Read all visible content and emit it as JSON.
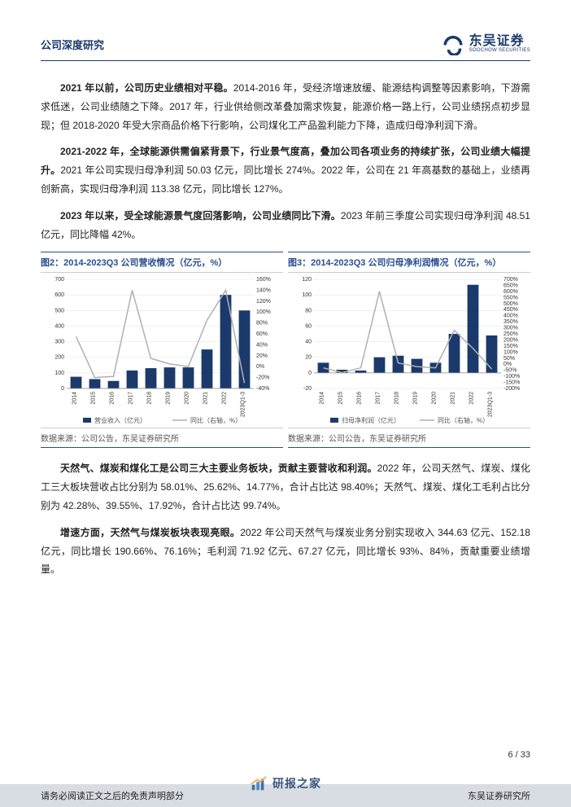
{
  "header": {
    "title": "公司深度研究",
    "logo_cn": "东吴证券",
    "logo_en": "SOOCHOW SECURITIES"
  },
  "paragraphs": {
    "p1a": "2021 年以前，公司历史业绩相对平稳。",
    "p1b": "2014-2016 年，受经济增速放缓、能源结构调整等因素影响，下游需求低迷，公司业绩随之下降。2017 年，行业供给侧改革叠加需求恢复，能源价格一路上行，公司业绩拐点初步显现；但 2018-2020 年受大宗商品价格下行影响，公司煤化工产品盈利能力下降，造成归母净利润下滑。",
    "p2a": "2021-2022 年，全球能源供需偏紧背景下，行业景气度高，叠加公司各项业务的持续扩张，公司业绩大幅提升。",
    "p2b": "2021 年公司实现归母净利润 50.03 亿元，同比增长 274%。2022 年，公司在 21 年高基数的基础上，业绩再创新高，实现归母净利润 113.38 亿元，同比增长 127%。",
    "p3a": "2023 年以来，受全球能源景气度回落影响，公司业绩同比下滑。",
    "p3b": "2023 年前三季度公司实现归母净利润 48.51 亿元，同比降幅 42%。",
    "p4a": "天然气、煤炭和煤化工是公司三大主要业务板块，贡献主要营收和利润。",
    "p4b": "2022 年，公司天然气、煤炭、煤化工三大板块营收占比分别为 58.01%、25.62%、14.77%，合计占比达 98.40%；天然气、煤炭、煤化工毛利占比分别为 42.28%、39.55%、17.92%，合计占比达 99.74%。",
    "p5a": "增速方面，天然气与煤炭板块表现亮眼。",
    "p5b": "2022 年公司天然气与煤炭业务分别实现收入 344.63 亿元、152.18 亿元，同比增长 190.66%、76.16%；毛利润 71.92 亿元、67.27 亿元，同比增长 93%、84%，贡献重要业绩增量。"
  },
  "chart2": {
    "title": "图2：2014-2023Q3 公司营收情况（亿元，%）",
    "type": "bar+line",
    "categories": [
      "2014",
      "2015",
      "2016",
      "2017",
      "2018",
      "2019",
      "2020",
      "2021",
      "2022",
      "2023Q1-3"
    ],
    "bar_values": [
      75,
      60,
      48,
      115,
      130,
      135,
      135,
      250,
      600,
      500
    ],
    "line_values": [
      55,
      -20,
      -18,
      140,
      15,
      5,
      0,
      85,
      140,
      -30
    ],
    "y_left": {
      "min": 0,
      "max": 700,
      "step": 100,
      "label": "营业收入（亿元）"
    },
    "y_right": {
      "min": -40,
      "max": 160,
      "step": 20,
      "unit": "%",
      "label": "同比（右轴，%）"
    },
    "bar_color": "#1b3a6b",
    "line_color": "#b0b0b0",
    "grid_color": "#e0e0e0",
    "background_color": "#ffffff",
    "legend": [
      "营业收入（亿元）",
      "同比（右轴，%）"
    ],
    "source": "数据来源：公司公告，东吴证券研究所"
  },
  "chart3": {
    "title": "图3：2014-2023Q3 公司归母净利润情况（亿元，%）",
    "type": "bar+line",
    "categories": [
      "2014",
      "2015",
      "2016",
      "2017",
      "2018",
      "2019",
      "2020",
      "2021",
      "2022",
      "2023Q1-3"
    ],
    "bar_values": [
      13,
      4,
      3,
      20,
      22,
      18,
      13,
      50,
      113,
      48
    ],
    "line_values": [
      -30,
      -70,
      -30,
      600,
      10,
      -20,
      -30,
      280,
      130,
      -40
    ],
    "y_left": {
      "min": -20,
      "max": 120,
      "step": 20,
      "label": "归母净利润（亿元）"
    },
    "y_right": {
      "min": -200,
      "max": 700,
      "step": 50,
      "display_step": 50,
      "unit": "%",
      "label": "同比（右轴，%）"
    },
    "bar_color": "#1b3a6b",
    "line_color": "#b0b0b0",
    "grid_color": "#e0e0e0",
    "background_color": "#ffffff",
    "legend": [
      "归母净利润（亿元）",
      "同比（右轴，%）"
    ],
    "source": "数据来源：公司公告，东吴证券研究所"
  },
  "footer": {
    "disclaimer": "请务必阅读正文之后的免责声明部分",
    "research": "东吴证券研究所",
    "page": "6 / 33",
    "watermark": "研报之家"
  }
}
